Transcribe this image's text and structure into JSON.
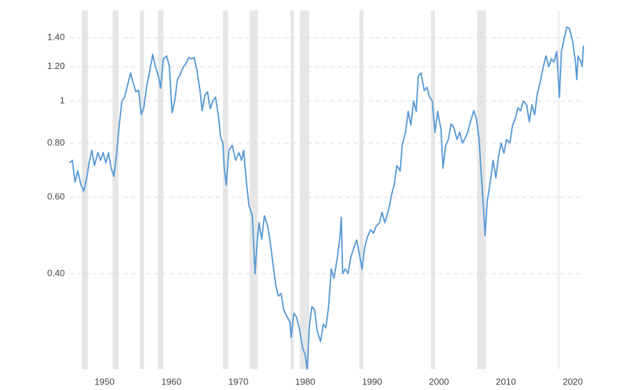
{
  "chart_data": {
    "type": "line",
    "log_y": true,
    "grid": true,
    "xlim": [
      1944.8,
      2021.7
    ],
    "ylim": [
      0.241,
      1.617
    ],
    "xticks": [
      1950,
      1960,
      1970,
      1980,
      1990,
      2000,
      2010,
      2020
    ],
    "yticks": [
      {
        "value": 0.4,
        "label": "0.40"
      },
      {
        "value": 0.6,
        "label": "0.60"
      },
      {
        "value": 0.8,
        "label": "0.80"
      },
      1,
      {
        "value": 1.2,
        "label": "1.20"
      },
      {
        "value": 1.4,
        "label": "1.40"
      }
    ],
    "recession_color": "#e6e6e6",
    "recessions": [
      [
        1946.6,
        1947.5
      ],
      [
        1951.2,
        1952.1
      ],
      [
        1955.3,
        1955.9
      ],
      [
        1958.0,
        1958.8
      ],
      [
        1967.7,
        1968.5
      ],
      [
        1971.7,
        1972.9
      ],
      [
        1977.8,
        1978.3
      ],
      [
        1979.2,
        1980.6
      ],
      [
        1988.1,
        1988.7
      ],
      [
        1998.8,
        1999.4
      ],
      [
        2005.7,
        2007.0
      ],
      [
        2017.8,
        2018.0
      ]
    ],
    "series": [
      {
        "color": "#5b9bd5",
        "x": [
          1944.8,
          1945.2,
          1945.6,
          1946.0,
          1946.5,
          1946.9,
          1947.3,
          1947.7,
          1948.1,
          1948.5,
          1949.0,
          1949.4,
          1949.8,
          1950.2,
          1950.6,
          1951.0,
          1951.4,
          1951.8,
          1952.2,
          1952.6,
          1953.0,
          1953.4,
          1953.9,
          1954.3,
          1954.7,
          1955.1,
          1955.5,
          1955.9,
          1956.3,
          1956.8,
          1957.2,
          1957.6,
          1958.0,
          1958.4,
          1958.8,
          1959.3,
          1959.7,
          1960.1,
          1960.5,
          1960.9,
          1961.3,
          1961.8,
          1962.2,
          1962.6,
          1963.0,
          1963.4,
          1963.8,
          1964.3,
          1964.6,
          1965.0,
          1965.4,
          1965.8,
          1966.2,
          1966.6,
          1967.0,
          1967.4,
          1967.7,
          1967.9,
          1968.2,
          1968.6,
          1969.1,
          1969.6,
          1970.1,
          1970.5,
          1970.8,
          1971.2,
          1971.6,
          1972.1,
          1972.5,
          1972.8,
          1973.1,
          1973.5,
          1973.9,
          1974.4,
          1974.8,
          1975.2,
          1975.6,
          1976.0,
          1976.4,
          1976.8,
          1977.3,
          1977.7,
          1977.9,
          1978.3,
          1978.7,
          1979.1,
          1979.6,
          1980.0,
          1980.3,
          1980.6,
          1981.0,
          1981.4,
          1981.8,
          1982.3,
          1982.7,
          1983.1,
          1983.5,
          1983.9,
          1984.3,
          1984.8,
          1985.2,
          1985.4,
          1985.6,
          1986.0,
          1986.4,
          1986.8,
          1987.3,
          1987.7,
          1988.1,
          1988.5,
          1988.9,
          1989.3,
          1989.8,
          1990.2,
          1990.6,
          1991.1,
          1991.5,
          1991.9,
          1992.5,
          1992.9,
          1993.3,
          1993.7,
          1994.2,
          1994.5,
          1995.0,
          1995.4,
          1995.8,
          1996.2,
          1996.6,
          1996.9,
          1997.3,
          1997.8,
          1998.2,
          1998.6,
          1999.0,
          1999.4,
          1999.8,
          2000.3,
          2000.6,
          2001.0,
          2001.4,
          2001.8,
          2002.2,
          2002.7,
          2003.1,
          2003.5,
          2003.9,
          2004.3,
          2004.7,
          2005.2,
          2005.6,
          2006.0,
          2006.3,
          2006.6,
          2006.9,
          2007.2,
          2007.6,
          2008.1,
          2008.5,
          2008.9,
          2009.3,
          2009.7,
          2010.1,
          2010.6,
          2011.0,
          2011.4,
          2011.8,
          2012.2,
          2012.6,
          2013.1,
          2013.5,
          2013.9,
          2014.3,
          2014.7,
          2015.1,
          2015.6,
          2016.0,
          2016.4,
          2016.8,
          2017.2,
          2017.6,
          2018.0,
          2018.3,
          2018.7,
          2019.1,
          2019.5,
          2020.0,
          2020.4,
          2020.6,
          2020.8,
          2021.2,
          2021.4,
          2021.6
        ],
        "values": [
          0.72,
          0.73,
          0.65,
          0.69,
          0.64,
          0.62,
          0.66,
          0.72,
          0.77,
          0.71,
          0.76,
          0.73,
          0.76,
          0.72,
          0.76,
          0.7,
          0.67,
          0.75,
          0.88,
          1.0,
          1.02,
          1.08,
          1.16,
          1.1,
          1.05,
          1.06,
          0.93,
          0.97,
          1.08,
          1.18,
          1.28,
          1.2,
          1.15,
          1.07,
          1.25,
          1.27,
          1.2,
          0.94,
          1.0,
          1.12,
          1.15,
          1.2,
          1.22,
          1.26,
          1.25,
          1.26,
          1.18,
          1.05,
          0.95,
          1.03,
          1.05,
          0.96,
          1.0,
          1.02,
          0.93,
          0.82,
          0.8,
          0.7,
          0.64,
          0.77,
          0.79,
          0.73,
          0.76,
          0.73,
          0.77,
          0.654,
          0.574,
          0.544,
          0.4,
          0.469,
          0.524,
          0.48,
          0.544,
          0.514,
          0.469,
          0.42,
          0.376,
          0.355,
          0.36,
          0.33,
          0.318,
          0.31,
          0.285,
          0.324,
          0.318,
          0.3,
          0.27,
          0.26,
          0.241,
          0.3,
          0.336,
          0.33,
          0.295,
          0.279,
          0.306,
          0.3,
          0.336,
          0.41,
          0.39,
          0.435,
          0.486,
          0.54,
          0.4,
          0.41,
          0.4,
          0.435,
          0.46,
          0.478,
          0.444,
          0.41,
          0.46,
          0.486,
          0.505,
          0.496,
          0.514,
          0.524,
          0.554,
          0.524,
          0.564,
          0.607,
          0.64,
          0.71,
          0.69,
          0.79,
          0.847,
          0.946,
          0.88,
          1.0,
          0.946,
          1.14,
          1.16,
          1.057,
          1.076,
          1.02,
          1.0,
          0.847,
          0.946,
          0.86,
          0.7,
          0.79,
          0.815,
          0.885,
          0.87,
          0.815,
          0.847,
          0.8,
          0.82,
          0.847,
          0.895,
          0.95,
          0.91,
          0.815,
          0.685,
          0.585,
          0.49,
          0.585,
          0.64,
          0.73,
          0.665,
          0.745,
          0.8,
          0.758,
          0.815,
          0.8,
          0.88,
          0.91,
          0.964,
          0.95,
          1.0,
          0.98,
          0.895,
          0.98,
          0.93,
          1.04,
          1.1,
          1.2,
          1.27,
          1.2,
          1.25,
          1.23,
          1.3,
          1.02,
          1.3,
          1.39,
          1.48,
          1.47,
          1.37,
          1.23,
          1.12,
          1.27,
          1.23,
          1.2,
          1.34
        ]
      }
    ]
  }
}
